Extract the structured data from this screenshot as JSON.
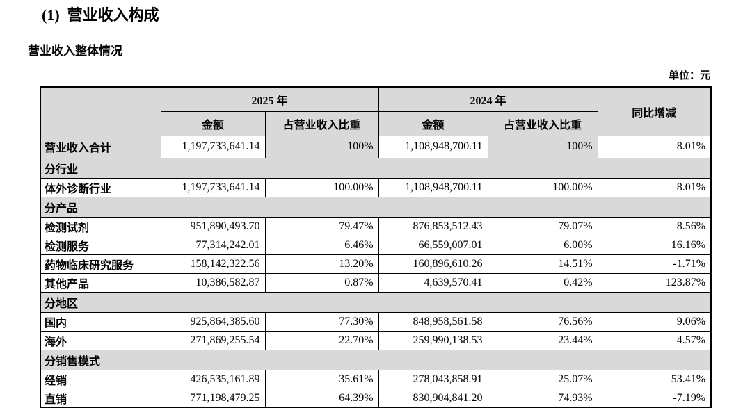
{
  "page": {
    "title": "(1)  营业收入构成",
    "subtitle": "营业收入整体情况",
    "unit_note": "单位：元"
  },
  "colors": {
    "shaded_cell": "#d9d9d9",
    "border": "#000000",
    "background": "#ffffff",
    "text": "#000000"
  },
  "table": {
    "header": {
      "year_2025": "2025 年",
      "year_2024": "2024 年",
      "amount_2025": "金额",
      "share_2025": "占营业收入比重",
      "amount_2024": "金额",
      "share_2024": "占营业收入比重",
      "yoy": "同比增减"
    },
    "rows": [
      {
        "type": "data",
        "variant": "total",
        "label": "营业收入合计",
        "a2025": "1,197,733,641.14",
        "s2025": "100%",
        "a2024": "1,108,948,700.11",
        "s2024": "100%",
        "yoy": "8.01%"
      },
      {
        "type": "section",
        "label": "分行业"
      },
      {
        "type": "data",
        "label": "体外诊断行业",
        "a2025": "1,197,733,641.14",
        "s2025": "100.00%",
        "a2024": "1,108,948,700.11",
        "s2024": "100.00%",
        "yoy": "8.01%"
      },
      {
        "type": "section",
        "label": "分产品"
      },
      {
        "type": "data",
        "label": "检测试剂",
        "a2025": "951,890,493.70",
        "s2025": "79.47%",
        "a2024": "876,853,512.43",
        "s2024": "79.07%",
        "yoy": "8.56%"
      },
      {
        "type": "data",
        "label": "检测服务",
        "a2025": "77,314,242.01",
        "s2025": "6.46%",
        "a2024": "66,559,007.01",
        "s2024": "6.00%",
        "yoy": "16.16%"
      },
      {
        "type": "data",
        "label": "药物临床研究服务",
        "a2025": "158,142,322.56",
        "s2025": "13.20%",
        "a2024": "160,896,610.26",
        "s2024": "14.51%",
        "yoy": "-1.71%"
      },
      {
        "type": "data",
        "label": "其他产品",
        "a2025": "10,386,582.87",
        "s2025": "0.87%",
        "a2024": "4,639,570.41",
        "s2024": "0.42%",
        "yoy": "123.87%"
      },
      {
        "type": "section",
        "label": "分地区"
      },
      {
        "type": "data",
        "label": "国内",
        "a2025": "925,864,385.60",
        "s2025": "77.30%",
        "a2024": "848,958,561.58",
        "s2024": "76.56%",
        "yoy": "9.06%"
      },
      {
        "type": "data",
        "label": "海外",
        "a2025": "271,869,255.54",
        "s2025": "22.70%",
        "a2024": "259,990,138.53",
        "s2024": "23.44%",
        "yoy": "4.57%"
      },
      {
        "type": "section",
        "label": "分销售模式"
      },
      {
        "type": "data",
        "label": "经销",
        "a2025": "426,535,161.89",
        "s2025": "35.61%",
        "a2024": "278,043,858.91",
        "s2024": "25.07%",
        "yoy": "53.41%"
      },
      {
        "type": "data",
        "label": "直销",
        "a2025": "771,198,479.25",
        "s2025": "64.39%",
        "a2024": "830,904,841.20",
        "s2024": "74.93%",
        "yoy": "-7.19%"
      }
    ]
  }
}
